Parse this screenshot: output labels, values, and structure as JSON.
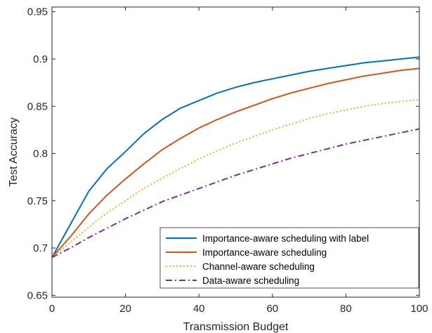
{
  "chart_data": {
    "type": "line",
    "xlabel": "Transmission Budget",
    "ylabel": "Test Accuracy",
    "xlim": [
      0,
      100
    ],
    "ylim": [
      0.648,
      0.955
    ],
    "xticks": [
      0,
      20,
      40,
      60,
      80,
      100
    ],
    "yticks": [
      0.65,
      0.7,
      0.75,
      0.8,
      0.85,
      0.9,
      0.95
    ],
    "xtick_labels": [
      "0",
      "20",
      "40",
      "60",
      "80",
      "100"
    ],
    "ytick_labels": [
      "0.65",
      "0.7",
      "0.75",
      "0.8",
      "0.85",
      "0.9",
      "0.95"
    ],
    "grid": false,
    "legend_position": "lower-right",
    "x": [
      0,
      5,
      10,
      15,
      20,
      25,
      30,
      35,
      40,
      45,
      50,
      55,
      60,
      65,
      70,
      75,
      80,
      85,
      90,
      95,
      100
    ],
    "series": [
      {
        "name": "Importance-aware scheduling with label",
        "color": "#0072BD",
        "dash": "solid",
        "values": [
          0.69,
          0.725,
          0.76,
          0.784,
          0.802,
          0.821,
          0.836,
          0.848,
          0.856,
          0.864,
          0.87,
          0.875,
          0.879,
          0.883,
          0.887,
          0.89,
          0.893,
          0.896,
          0.898,
          0.9,
          0.902
        ]
      },
      {
        "name": "Importance-aware scheduling",
        "color": "#D95319",
        "dash": "solid",
        "values": [
          0.69,
          0.712,
          0.736,
          0.756,
          0.773,
          0.789,
          0.804,
          0.816,
          0.827,
          0.836,
          0.844,
          0.851,
          0.858,
          0.864,
          0.869,
          0.874,
          0.878,
          0.882,
          0.885,
          0.888,
          0.89
        ]
      },
      {
        "name": "Channel-aware scheduling",
        "color": "#EDB120",
        "dash": "dotted",
        "values": [
          0.69,
          0.706,
          0.722,
          0.737,
          0.75,
          0.763,
          0.774,
          0.784,
          0.794,
          0.803,
          0.811,
          0.818,
          0.825,
          0.831,
          0.837,
          0.842,
          0.846,
          0.85,
          0.853,
          0.855,
          0.857
        ]
      },
      {
        "name": "Data-aware scheduling",
        "color": "#7E2F8E",
        "dash": "dashdot",
        "values": [
          0.69,
          0.7,
          0.711,
          0.721,
          0.731,
          0.74,
          0.749,
          0.756,
          0.763,
          0.77,
          0.777,
          0.783,
          0.789,
          0.795,
          0.8,
          0.805,
          0.81,
          0.814,
          0.818,
          0.822,
          0.826
        ]
      }
    ]
  }
}
